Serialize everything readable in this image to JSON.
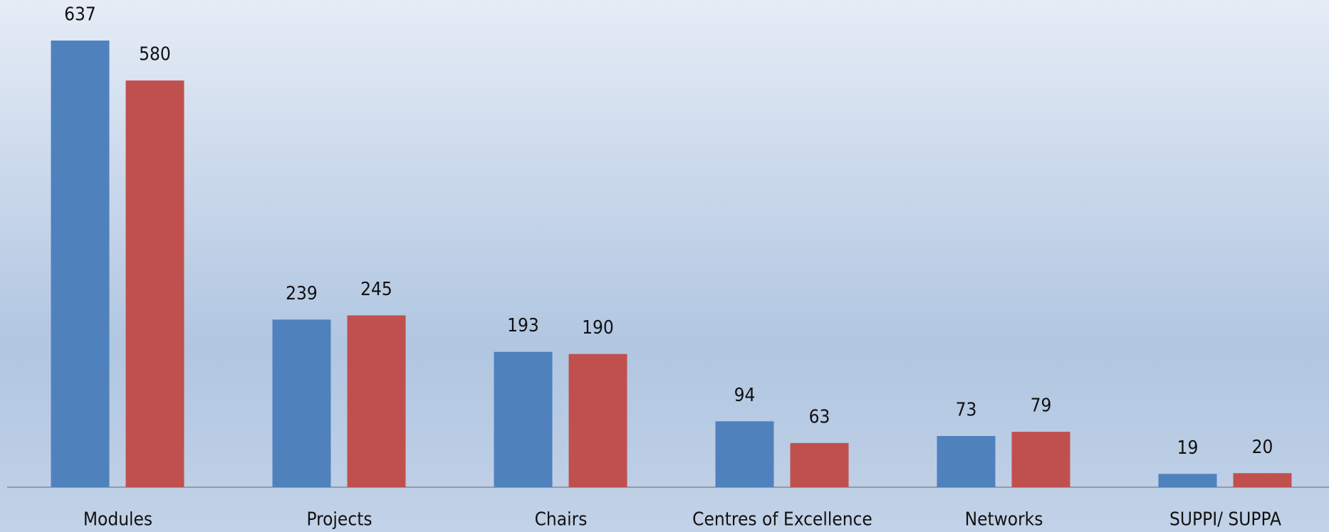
{
  "chart_data": {
    "type": "bar",
    "categories": [
      "Modules",
      "Projects",
      "Chairs",
      "Centres of Excellence",
      "Networks",
      "SUPPI/ SUPPA"
    ],
    "series": [
      {
        "color": "#4f81bd",
        "values": [
          637,
          239,
          193,
          94,
          73,
          19
        ]
      },
      {
        "color": "#c0504d",
        "values": [
          580,
          245,
          190,
          63,
          79,
          20
        ]
      }
    ]
  }
}
